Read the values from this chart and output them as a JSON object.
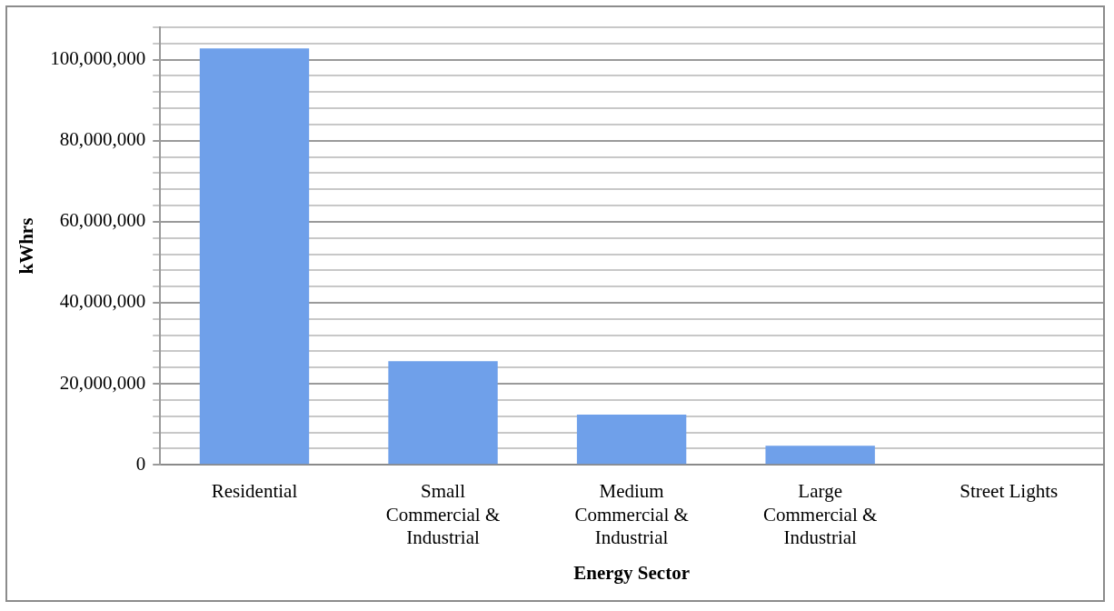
{
  "chart_data": {
    "type": "bar",
    "xlabel": "Energy Sector",
    "ylabel": "kWhrs",
    "categories": [
      "Residential",
      "Small Commercial & Industrial",
      "Medium Commercial & Industrial",
      "Large Commercial & Industrial",
      "Street Lights"
    ],
    "values": [
      102800000,
      25600000,
      12400000,
      4700000,
      0
    ],
    "color": "#6fa0ea",
    "ylim": [
      0,
      108000000
    ],
    "yticks": [
      0,
      {
        "value": 4000000,
        "label": null
      },
      {
        "value": 8000000,
        "label": null
      },
      {
        "value": 12000000,
        "label": null
      },
      {
        "value": 16000000,
        "label": null
      },
      {
        "value": 20000000,
        "label": "20,000,000"
      },
      {
        "value": 24000000,
        "label": null
      },
      {
        "value": 28000000,
        "label": null
      },
      {
        "value": 32000000,
        "label": null
      },
      {
        "value": 36000000,
        "label": null
      },
      {
        "value": 40000000,
        "label": "40,000,000"
      },
      {
        "value": 44000000,
        "label": null
      },
      {
        "value": 48000000,
        "label": null
      },
      {
        "value": 52000000,
        "label": null
      },
      {
        "value": 56000000,
        "label": null
      },
      {
        "value": 60000000,
        "label": "60,000,000"
      },
      {
        "value": 64000000,
        "label": null
      },
      {
        "value": 68000000,
        "label": null
      },
      {
        "value": 72000000,
        "label": null
      },
      {
        "value": 76000000,
        "label": null
      },
      {
        "value": 80000000,
        "label": "80,000,000"
      },
      {
        "value": 84000000,
        "label": null
      },
      {
        "value": 88000000,
        "label": null
      },
      {
        "value": 92000000,
        "label": null
      },
      {
        "value": 96000000,
        "label": null
      },
      {
        "value": 100000000,
        "label": "100,000,000"
      },
      {
        "value": 104000000,
        "label": null
      },
      {
        "value": 108000000,
        "label": null
      }
    ],
    "grid": "y"
  }
}
